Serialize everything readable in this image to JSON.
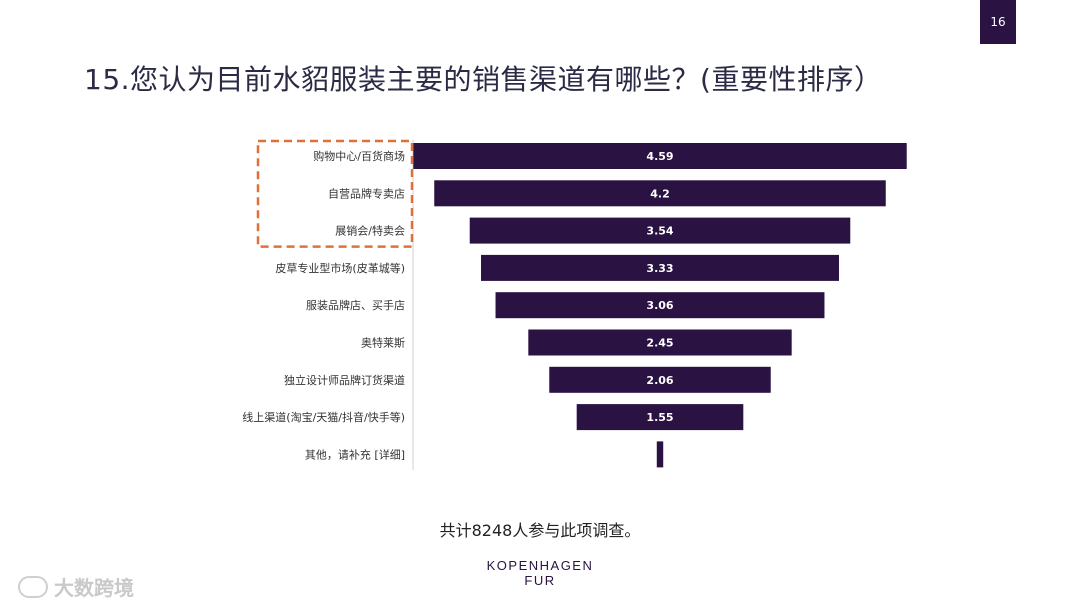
{
  "page_number": "16",
  "title": "15.您认为目前水貂服装主要的销售渠道有哪些？(重要性排序）",
  "footnote": "共计8248人参与此项调查。",
  "logo": {
    "line1": "KOPENHAGEN",
    "line2": "FUR"
  },
  "watermark": {
    "icon": "dakuajing-logo-icon",
    "text": "大数跨境"
  },
  "colors": {
    "bar": "#2a1242",
    "highlight_box": "#e0703a",
    "value_label": "#ffffff"
  },
  "chart_data": {
    "type": "bar",
    "orientation": "horizontal-centered",
    "categories": [
      "购物中心/百货商场",
      "自营品牌专卖店",
      "展销会/特卖会",
      "皮草专业型市场(皮革城等)",
      "服装品牌店、买手店",
      "奥特莱斯",
      "独立设计师品牌订货渠道",
      "线上渠道(淘宝/天猫/抖音/快手等)",
      "其他，请补充 [详细]"
    ],
    "values": [
      4.59,
      4.2,
      3.54,
      3.33,
      3.06,
      2.45,
      2.06,
      1.55,
      0.06
    ],
    "value_labels": [
      "4.59",
      "4.2",
      "3.54",
      "3.33",
      "3.06",
      "2.45",
      "2.06",
      "1.55",
      ""
    ],
    "highlighted_categories": 3
  }
}
